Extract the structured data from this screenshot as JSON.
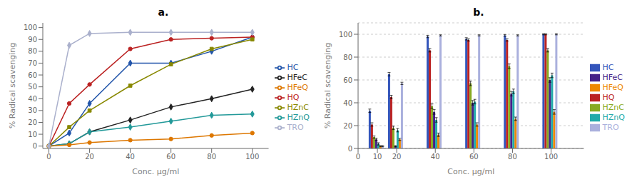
{
  "chart_data": [
    {
      "type": "line",
      "title": "a.",
      "x_label": "Conc. μg/ml",
      "y_label": "% Radical scavenging",
      "x": [
        0,
        10,
        20,
        40,
        60,
        80,
        100
      ],
      "xlim": [
        -3,
        108
      ],
      "ylim": [
        -2,
        104
      ],
      "xticks": [
        0,
        20,
        40,
        60,
        80,
        100
      ],
      "yticks": [
        0,
        10,
        20,
        30,
        40,
        50,
        60,
        70,
        80,
        90,
        100
      ],
      "grid": false,
      "legend": "right",
      "series": [
        {
          "name": "HC",
          "color": "#2255aa",
          "marker": "diamond",
          "values": [
            0,
            11,
            36,
            70,
            70,
            80,
            92
          ]
        },
        {
          "name": "HQ",
          "color": "#bb2222",
          "marker": "circle",
          "values": [
            0,
            36,
            52,
            82,
            90,
            91,
            92
          ]
        },
        {
          "name": "HZnC",
          "color": "#888800",
          "marker": "square",
          "values": [
            0,
            16,
            30,
            51,
            69,
            82,
            90
          ]
        },
        {
          "name": "HFeC",
          "color": "#222222",
          "marker": "diamond",
          "values": [
            0,
            2,
            12,
            22,
            33,
            40,
            48
          ]
        },
        {
          "name": "HZnQ",
          "color": "#229999",
          "marker": "diamond",
          "values": [
            0,
            2,
            12,
            16,
            21,
            26,
            27
          ]
        },
        {
          "name": "HFeQ",
          "color": "#dd7700",
          "marker": "circle",
          "values": [
            0,
            1,
            3,
            5,
            6,
            9,
            11
          ]
        },
        {
          "name": "TRO",
          "color": "#aab0cc",
          "marker": "diamond",
          "values": [
            0,
            85,
            95,
            96,
            96,
            96,
            96
          ]
        }
      ]
    },
    {
      "type": "bar",
      "title": "b.",
      "x_label": "Conc. μg/ml",
      "y_label": "% Radical scavenging",
      "x": [
        10,
        20,
        40,
        60,
        80,
        100
      ],
      "xlim": [
        0,
        117
      ],
      "ylim": [
        0,
        110
      ],
      "xticks": [
        0,
        10,
        20,
        40,
        60,
        80,
        100
      ],
      "yticks": [
        0,
        20,
        40,
        60,
        80,
        100
      ],
      "grid": "y",
      "legend": "right",
      "series": [
        {
          "name": "HC",
          "color": "#3355bb",
          "values": [
            33,
            65,
            98,
            96,
            99,
            100
          ],
          "errors": [
            1.5,
            1.5,
            1.0,
            1.0,
            0.8,
            0.5
          ]
        },
        {
          "name": "HQ",
          "color": "#bb2222",
          "values": [
            21,
            45,
            86,
            95,
            95,
            100
          ],
          "errors": [
            1.5,
            1.5,
            1.5,
            1.0,
            1.0,
            0.5
          ]
        },
        {
          "name": "HZnC",
          "color": "#88aa22",
          "values": [
            10,
            18,
            37,
            57,
            72,
            86
          ],
          "errors": [
            1.0,
            1.5,
            2.0,
            2.0,
            2.0,
            1.5
          ]
        },
        {
          "name": "HFeC",
          "color": "#442288",
          "values": [
            8,
            2,
            32,
            40,
            48,
            60
          ],
          "errors": [
            1.0,
            0.5,
            2.0,
            2.0,
            2.0,
            2.0
          ]
        },
        {
          "name": "HZnQ",
          "color": "#22aaaa",
          "values": [
            4,
            16,
            25,
            41,
            50,
            64
          ],
          "errors": [
            1.0,
            1.5,
            2.0,
            2.0,
            2.0,
            2.0
          ]
        },
        {
          "name": "HFeQ",
          "color": "#ee8800",
          "values": [
            2,
            8,
            12,
            21,
            26,
            32
          ],
          "errors": [
            0.5,
            1.0,
            1.5,
            1.5,
            1.5,
            2.0
          ]
        },
        {
          "name": "TRO",
          "color": "#aab0dd",
          "values": [
            2,
            57,
            99,
            99,
            99,
            100
          ],
          "errors": [
            0.5,
            1.0,
            0.5,
            0.5,
            0.5,
            0.5
          ]
        }
      ]
    }
  ]
}
